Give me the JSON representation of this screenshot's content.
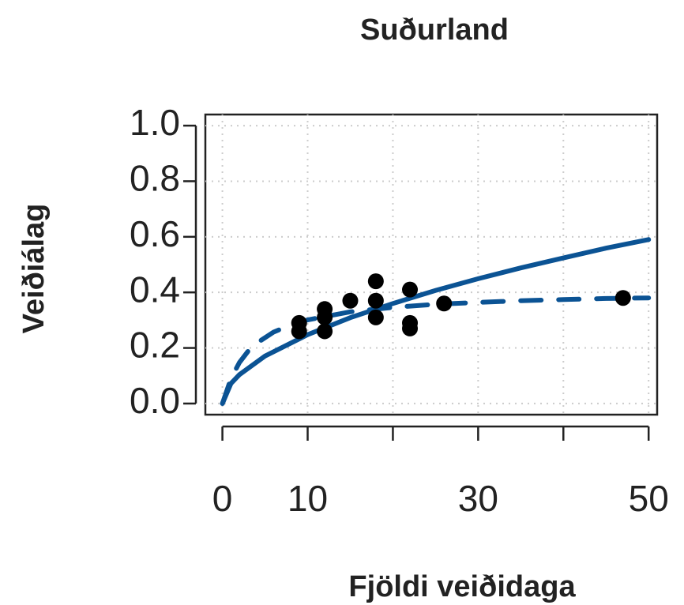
{
  "chart_data": {
    "type": "scatter",
    "title": "Suðurland",
    "xlabel": "Fjöldi veiðidaga",
    "ylabel": "Veiðiálag",
    "xlim": [
      -2,
      51
    ],
    "ylim": [
      -0.04,
      1.04
    ],
    "xticks": [
      0,
      10,
      {
        "value": 20,
        "label": null
      },
      30,
      {
        "value": 40,
        "label": null
      },
      50
    ],
    "yticks": [
      {
        "value": 0,
        "label": "0.0"
      },
      0.2,
      0.4,
      0.6,
      0.8,
      {
        "value": 1,
        "label": "1.0"
      }
    ],
    "grid": true,
    "points": {
      "color": "#000000",
      "x": [
        9,
        9,
        12,
        12,
        12,
        15,
        18,
        18,
        18,
        22,
        22,
        22,
        26,
        47
      ],
      "y": [
        0.29,
        0.26,
        0.34,
        0.31,
        0.26,
        0.37,
        0.44,
        0.37,
        0.31,
        0.41,
        0.29,
        0.27,
        0.36,
        0.38
      ]
    },
    "lines": [
      {
        "color": "#0b5394",
        "dashed": false,
        "x": [
          0,
          1,
          2,
          5,
          10,
          15,
          20,
          25,
          30,
          35,
          40,
          45,
          50
        ],
        "values": [
          0,
          0.072,
          0.104,
          0.171,
          0.248,
          0.309,
          0.36,
          0.407,
          0.449,
          0.488,
          0.524,
          0.559,
          0.59
        ]
      },
      {
        "color": "#0b5394",
        "dashed": true,
        "x": [
          0,
          1,
          2,
          3,
          4,
          6,
          8,
          10,
          15,
          20,
          25,
          30,
          35,
          40,
          45,
          50
        ],
        "values": [
          0,
          0.09,
          0.148,
          0.188,
          0.217,
          0.257,
          0.283,
          0.301,
          0.33,
          0.346,
          0.357,
          0.364,
          0.37,
          0.374,
          0.378,
          0.38
        ]
      }
    ]
  }
}
